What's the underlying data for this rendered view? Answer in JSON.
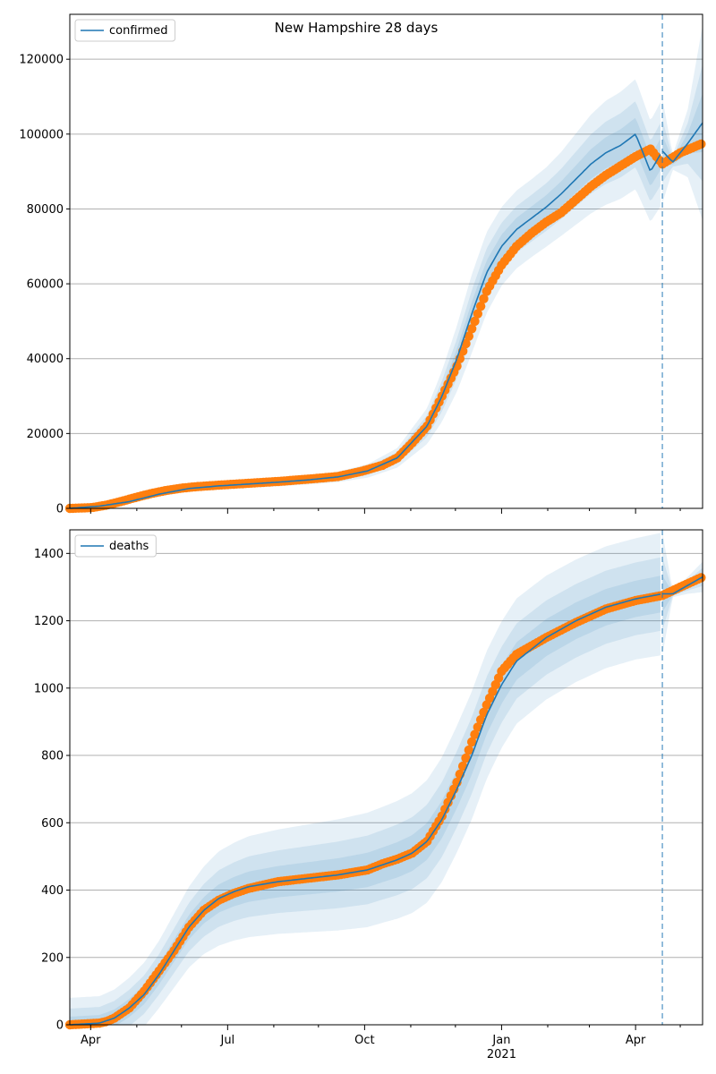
{
  "figure_title": "New Hampshire 28 days",
  "colors": {
    "model": "#1f77b4",
    "band": "#1f77b4",
    "observed": "#ff7f0e",
    "grid": "#b0b0b0",
    "cutoff": "#1f77b4"
  },
  "chart_data": [
    {
      "type": "line",
      "name": "confirmed",
      "legend": "confirmed",
      "legend_position": "top-left",
      "ylim": [
        0,
        132000
      ],
      "yticks": [
        0,
        20000,
        40000,
        60000,
        80000,
        100000,
        120000
      ],
      "ytick_labels": [
        "0",
        "20000",
        "40000",
        "60000",
        "80000",
        "100000",
        "120000"
      ],
      "xlim": [
        0,
        425
      ],
      "cutoff_day": 398,
      "band_width_factors": [
        0.3,
        0.6,
        1.0
      ],
      "model": {
        "x": [
          0,
          20,
          40,
          60,
          80,
          100,
          120,
          140,
          160,
          180,
          200,
          220,
          240,
          250,
          260,
          270,
          280,
          290,
          300,
          310,
          320,
          330,
          340,
          350,
          360,
          370,
          380,
          390,
          398,
          405,
          415,
          425
        ],
        "y": [
          0,
          600,
          1800,
          3800,
          5300,
          6000,
          6500,
          7000,
          7600,
          8400,
          10000,
          13500,
          22000,
          30000,
          40000,
          52000,
          63000,
          70000,
          74500,
          77500,
          80500,
          84000,
          88000,
          92000,
          95000,
          97000,
          100000,
          90000,
          95500,
          92500,
          97500,
          103000
        ],
        "half_width": [
          0,
          90,
          280,
          600,
          800,
          900,
          1000,
          1100,
          1200,
          1400,
          1800,
          2600,
          4800,
          6800,
          8800,
          10500,
          10800,
          10500,
          10400,
          10400,
          10600,
          11200,
          12200,
          13200,
          13900,
          14300,
          14700,
          13500,
          14000,
          2000,
          9000,
          26000
        ]
      },
      "observed": {
        "x": [
          0,
          15,
          25,
          35,
          45,
          55,
          65,
          75,
          85,
          100,
          120,
          140,
          160,
          180,
          195,
          210,
          220,
          230,
          240,
          250,
          260,
          270,
          280,
          290,
          300,
          310,
          320,
          330,
          340,
          350,
          360,
          370,
          380,
          390,
          398,
          410,
          425
        ],
        "y": [
          0,
          200,
          900,
          1900,
          3000,
          4000,
          4800,
          5400,
          5800,
          6200,
          6700,
          7200,
          7800,
          8500,
          9800,
          11500,
          13500,
          17500,
          22000,
          30000,
          38000,
          48000,
          58000,
          65000,
          70000,
          73500,
          76500,
          79000,
          82500,
          86000,
          89000,
          91500,
          94000,
          96000,
          92000,
          95000,
          97500
        ]
      },
      "xticks": [],
      "xtick_labels": []
    },
    {
      "type": "line",
      "name": "deaths",
      "legend": "deaths",
      "legend_position": "top-left",
      "ylim": [
        0,
        1470
      ],
      "yticks": [
        0,
        200,
        400,
        600,
        800,
        1000,
        1200,
        1400
      ],
      "ytick_labels": [
        "0",
        "200",
        "400",
        "600",
        "800",
        "1000",
        "1200",
        "1400"
      ],
      "xlim": [
        0,
        425
      ],
      "cutoff_day": 398,
      "band_width_factors": [
        0.3,
        0.6,
        1.0
      ],
      "model": {
        "x": [
          0,
          20,
          30,
          40,
          50,
          60,
          70,
          80,
          90,
          100,
          110,
          120,
          140,
          160,
          180,
          200,
          210,
          220,
          230,
          240,
          250,
          260,
          270,
          280,
          290,
          300,
          320,
          340,
          360,
          380,
          398,
          405,
          415,
          425
        ],
        "y": [
          0,
          5,
          20,
          50,
          90,
          150,
          220,
          290,
          340,
          375,
          395,
          410,
          425,
          435,
          445,
          460,
          475,
          490,
          510,
          545,
          610,
          700,
          800,
          920,
          1010,
          1080,
          1150,
          1200,
          1240,
          1265,
          1280,
          1280,
          1305,
          1330
        ],
        "half_width": [
          80,
          80,
          85,
          90,
          95,
          100,
          110,
          120,
          130,
          140,
          145,
          150,
          155,
          160,
          165,
          170,
          172,
          175,
          178,
          182,
          185,
          188,
          190,
          190,
          188,
          186,
          184,
          182,
          181,
          180,
          182,
          10,
          25,
          45
        ]
      },
      "observed": {
        "x": [
          0,
          20,
          25,
          30,
          40,
          50,
          60,
          70,
          80,
          90,
          100,
          110,
          120,
          140,
          160,
          180,
          200,
          210,
          220,
          230,
          240,
          250,
          260,
          270,
          280,
          290,
          300,
          320,
          340,
          360,
          380,
          398,
          410,
          425
        ],
        "y": [
          0,
          5,
          10,
          20,
          50,
          100,
          160,
          220,
          290,
          340,
          370,
          390,
          405,
          425,
          435,
          445,
          460,
          478,
          492,
          510,
          545,
          620,
          720,
          840,
          950,
          1050,
          1100,
          1150,
          1195,
          1235,
          1260,
          1275,
          1300,
          1330
        ]
      },
      "xticks": [
        14,
        106,
        198,
        290,
        380
      ],
      "xtick_labels": [
        "Apr",
        "Jul",
        "Oct",
        "Jan",
        "Apr"
      ],
      "xtick_sublabels": [
        "",
        "",
        "",
        "2021",
        ""
      ],
      "minor_xticks": [
        45,
        75,
        137,
        167,
        229,
        259,
        321,
        349,
        410
      ]
    }
  ]
}
